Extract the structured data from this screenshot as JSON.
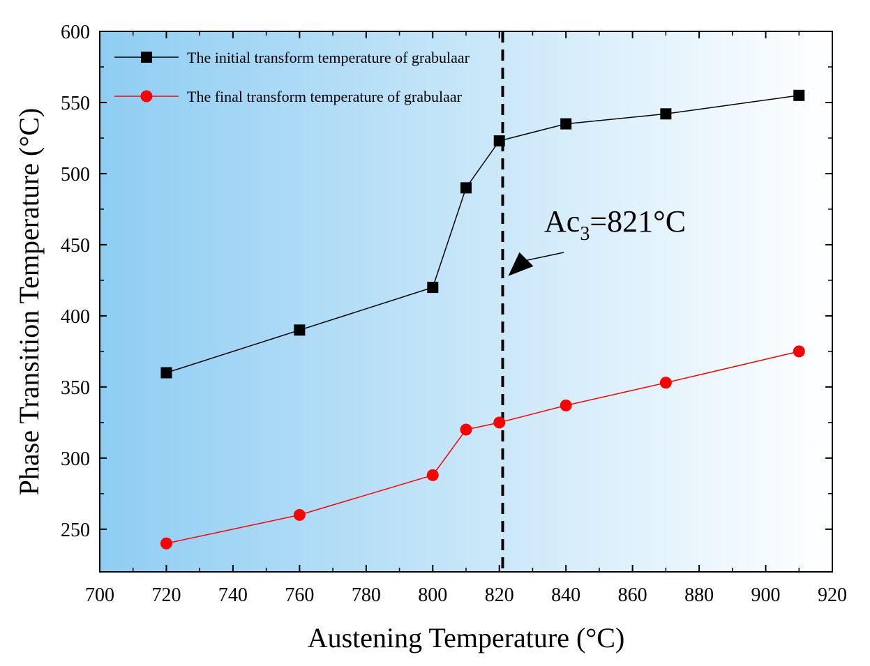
{
  "chart_data": {
    "type": "line",
    "title": "",
    "xlabel": "Austening Temperature (°C)",
    "ylabel": "Phase Transition Temperature (°C)",
    "xlim": [
      700,
      920
    ],
    "ylim": [
      220,
      600
    ],
    "xticks": [
      700,
      720,
      740,
      760,
      780,
      800,
      820,
      840,
      860,
      880,
      900,
      920
    ],
    "yticks": [
      250,
      300,
      350,
      400,
      450,
      500,
      550,
      600
    ],
    "series": [
      {
        "name": "The initial transform temperature of grabulaar",
        "marker": "square",
        "color": "#000000",
        "x": [
          720,
          760,
          800,
          810,
          820,
          840,
          870,
          910
        ],
        "y": [
          360,
          390,
          420,
          490,
          523,
          535,
          542,
          555
        ]
      },
      {
        "name": "The final transform temperature of grabulaar",
        "marker": "circle",
        "color": "#ff0000",
        "x": [
          720,
          760,
          800,
          810,
          820,
          840,
          870,
          910
        ],
        "y": [
          240,
          260,
          288,
          320,
          325,
          337,
          353,
          375
        ]
      }
    ],
    "reference_line": {
      "x": 821,
      "style": "dashed"
    },
    "annotation": {
      "prefix": "Ac",
      "subscript": "3",
      "suffix": "=821°C",
      "arrow_to": [
        821,
        428
      ]
    },
    "legend_position": "top-left",
    "background": {
      "gradient_from": "#8ecdf2",
      "gradient_to": "#ffffff"
    },
    "grid": false
  }
}
